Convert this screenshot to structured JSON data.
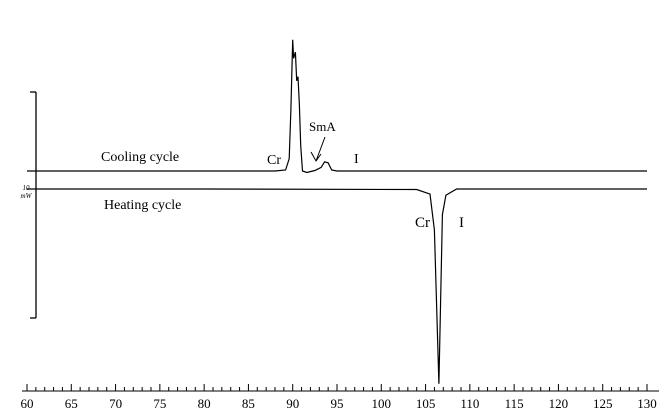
{
  "chart_data": {
    "type": "line",
    "x_ticks": [
      60,
      65,
      70,
      75,
      80,
      85,
      90,
      95,
      100,
      105,
      110,
      115,
      120,
      125,
      130
    ],
    "x_tick_labels": [
      "60",
      "65",
      "70",
      "75",
      "80",
      "85",
      "90",
      "95",
      "100",
      "105",
      "110",
      "115",
      "120",
      "125",
      "130"
    ],
    "xlim": [
      60,
      130
    ],
    "scale_bar": {
      "value": "10",
      "unit": "mW"
    },
    "grid": false,
    "series": [
      {
        "name": "Cooling cycle",
        "x": [
          60,
          80,
          88,
          89.2,
          89.6,
          89.8,
          90.0,
          90.1,
          90.3,
          90.45,
          90.6,
          90.75,
          90.9,
          91.1,
          91.6,
          92.5,
          93.2,
          93.6,
          94.0,
          94.4,
          95.0,
          100,
          120,
          130
        ],
        "y": [
          0.0,
          0.0,
          0.0,
          0.1,
          1.2,
          6.0,
          12.8,
          11.0,
          11.6,
          8.8,
          9.2,
          6.4,
          2.5,
          0.0,
          -0.15,
          0.05,
          0.35,
          0.9,
          0.8,
          0.1,
          0.0,
          0.0,
          0.0,
          0.0
        ]
      },
      {
        "name": "Heating cycle",
        "x": [
          60,
          80,
          104,
          105.5,
          106.0,
          106.3,
          106.5,
          106.7,
          106.9,
          107.3,
          108.5,
          115,
          130
        ],
        "y": [
          0.0,
          0.0,
          -0.05,
          -0.5,
          -4.0,
          -13.0,
          -19.0,
          -11.0,
          -2.5,
          -0.6,
          0.0,
          0.0,
          0.0
        ]
      }
    ],
    "annotations": {
      "cooling_label": "Cooling cycle",
      "heating_label": "Heating cycle",
      "cooling_cr": "Cr",
      "cooling_sma": "SmA",
      "cooling_i": "I",
      "heating_cr": "Cr",
      "heating_i": "I"
    }
  }
}
